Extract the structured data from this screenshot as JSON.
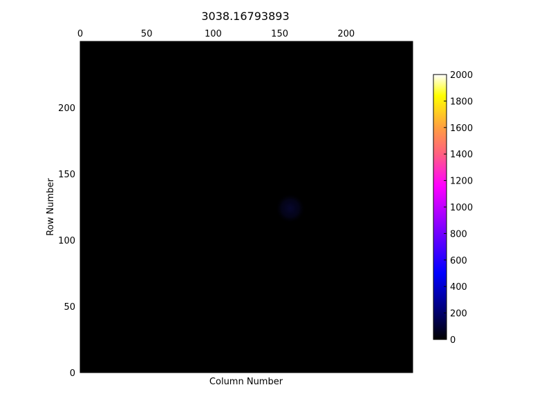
{
  "chart_data": {
    "type": "heatmap",
    "title": "3038.16793893",
    "xlabel": "Column Number",
    "ylabel": "Row Number",
    "xlim": [
      0,
      250
    ],
    "ylim": [
      0,
      250
    ],
    "x_ticks": [
      0,
      50,
      100,
      150,
      200
    ],
    "y_ticks": [
      0,
      50,
      100,
      150,
      200
    ],
    "x_tick_labels": [
      "0",
      "50",
      "100",
      "150",
      "200"
    ],
    "y_tick_labels": [
      "0",
      "50",
      "100",
      "150",
      "200"
    ],
    "x_axis_position": "top",
    "colormap": "gnuplot2",
    "color_range": [
      0,
      2000
    ],
    "colorbar_ticks": [
      0,
      200,
      400,
      600,
      800,
      1000,
      1200,
      1400,
      1600,
      1800,
      2000
    ],
    "colorbar_tick_labels": [
      "0",
      "200",
      "400",
      "600",
      "800",
      "1000",
      "1200",
      "1400",
      "1600",
      "1800",
      "2000"
    ],
    "colorbar_position": "right",
    "background_value": 0,
    "features": [
      {
        "type": "faint-blob",
        "center_column": 158,
        "center_row": 124,
        "peak_value": 60
      }
    ],
    "grid": false
  },
  "colors": {
    "background": "#ffffff",
    "plot_background": "#000000",
    "axis": "#000000",
    "text": "#000000",
    "colormap_stops": [
      "#000000",
      "#000080",
      "#0000ff",
      "#8000ff",
      "#ff00ff",
      "#ff6080",
      "#ff9f40",
      "#ffff00",
      "#ffffff"
    ]
  }
}
